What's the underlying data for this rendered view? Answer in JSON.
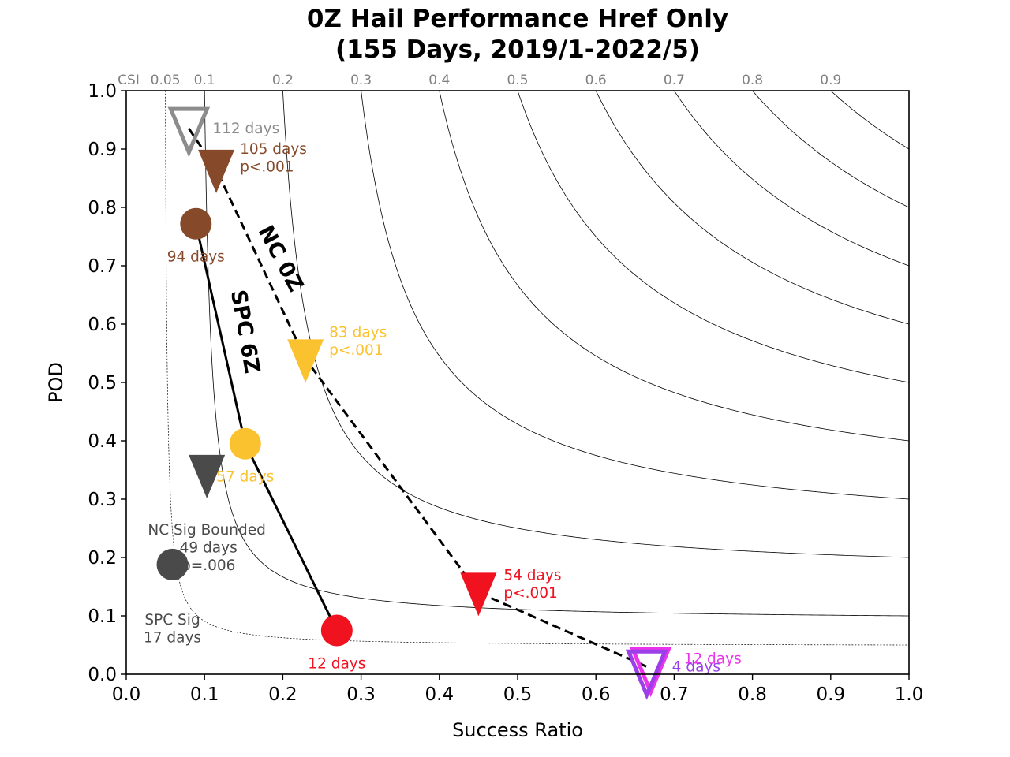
{
  "chart_data": {
    "type": "scatter",
    "title": [
      "0Z Hail Performance Href Only",
      "(155 Days, 2019/1-2022/5)"
    ],
    "xlabel": "Success Ratio",
    "ylabel": "POD",
    "xlim": [
      0.0,
      1.0
    ],
    "ylim": [
      0.0,
      1.0
    ],
    "xticks": [
      "0.0",
      "0.1",
      "0.2",
      "0.3",
      "0.4",
      "0.5",
      "0.6",
      "0.7",
      "0.8",
      "0.9",
      "1.0"
    ],
    "yticks": [
      "0.0",
      "0.1",
      "0.2",
      "0.3",
      "0.4",
      "0.5",
      "0.6",
      "0.7",
      "0.8",
      "0.9",
      "1.0"
    ],
    "grid": false,
    "csi": {
      "label": "CSI",
      "contours": [
        {
          "value": 0.05,
          "label": "0.05",
          "dashed": true
        },
        {
          "value": 0.1,
          "label": "0.1"
        },
        {
          "value": 0.2,
          "label": "0.2"
        },
        {
          "value": 0.3,
          "label": "0.3"
        },
        {
          "value": 0.4,
          "label": "0.4"
        },
        {
          "value": 0.5,
          "label": "0.5"
        },
        {
          "value": 0.6,
          "label": "0.6"
        },
        {
          "value": 0.7,
          "label": "0.7"
        },
        {
          "value": 0.8,
          "label": "0.8"
        },
        {
          "value": 0.9,
          "label": "0.9"
        }
      ]
    },
    "series": [
      {
        "name": "NC 0Z",
        "line": "dashed",
        "points": [
          {
            "x": 0.08,
            "y": 0.935,
            "color": "#8c8c8c",
            "marker": "triangle-down-open",
            "labels": [
              "112 days"
            ]
          },
          {
            "x": 0.115,
            "y": 0.865,
            "color": "#86492a",
            "marker": "triangle-down",
            "labels": [
              "105 days",
              "p<.001"
            ]
          },
          {
            "x": 0.229,
            "y": 0.54,
            "color": "#fbc22f",
            "marker": "triangle-down",
            "labels": [
              "83 days",
              "p<.001"
            ]
          },
          {
            "x": 0.45,
            "y": 0.14,
            "color": "#f0121f",
            "marker": "triangle-down",
            "labels": [
              "54 days",
              "p<.001"
            ]
          },
          {
            "x": 0.67,
            "y": 0.01,
            "color": "#ea33ea",
            "marker": "triangle-down-open",
            "labels": [
              "12 days"
            ]
          },
          {
            "x": 0.665,
            "y": 0.005,
            "color": "#9b3fe8",
            "marker": "triangle-down-open",
            "labels": [
              "4 days"
            ]
          }
        ]
      },
      {
        "name": "SPC 6Z",
        "line": "solid",
        "points": [
          {
            "x": 0.089,
            "y": 0.772,
            "color": "#86492a",
            "marker": "circle",
            "labels": [
              "94 days"
            ]
          },
          {
            "x": 0.152,
            "y": 0.395,
            "color": "#fbc22f",
            "marker": "circle",
            "labels": [
              "57 days"
            ]
          },
          {
            "x": 0.269,
            "y": 0.075,
            "color": "#f0121f",
            "marker": "circle",
            "labels": [
              "12 days"
            ]
          }
        ]
      },
      {
        "name": "",
        "line": "none",
        "points": [
          {
            "x": 0.103,
            "y": 0.342,
            "color": "#4a4a4a",
            "marker": "triangle-down",
            "labels": [
              "NC Sig Bounded",
              "49 days",
              "p=.006"
            ]
          },
          {
            "x": 0.059,
            "y": 0.188,
            "color": "#4a4a4a",
            "marker": "circle",
            "labels": [
              "SPC Sig",
              "17 days"
            ]
          }
        ]
      }
    ]
  }
}
